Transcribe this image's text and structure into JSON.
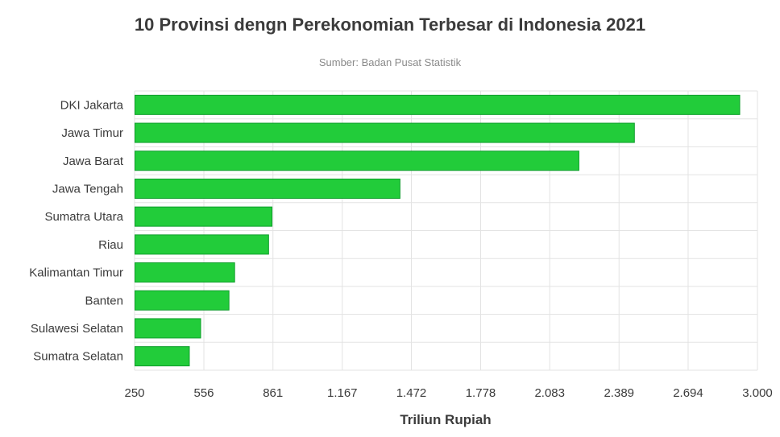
{
  "chart_data": {
    "type": "bar",
    "orientation": "horizontal",
    "title": "10 Provinsi dengn Perekonomian Terbesar di Indonesia 2021",
    "subtitle": "Sumber: Badan Pusat Statistik",
    "xlabel": "Triliun Rupiah",
    "ylabel": "",
    "xlim": [
      250,
      3000
    ],
    "x_ticks": [
      250,
      556,
      861,
      1167,
      1472,
      1778,
      2083,
      2389,
      2694,
      3000
    ],
    "x_tick_labels": [
      "250",
      "556",
      "861",
      "1.167",
      "1.472",
      "1.778",
      "2.083",
      "2.389",
      "2.694",
      "3.000"
    ],
    "grid": true,
    "legend": "none",
    "bar_color": "#22cc3a",
    "bar_border_color": "#0e9e2b",
    "categories": [
      "DKI Jakarta",
      "Jawa Timur",
      "Jawa Barat",
      "Jawa Tengah",
      "Sumatra Utara ",
      "Riau",
      "Kalimantan Timur",
      "Banten",
      "Sulawesi Selatan",
      "Sumatra Selatan"
    ],
    "values": [
      2920,
      2455,
      2210,
      1420,
      855,
      840,
      690,
      665,
      540,
      490
    ]
  }
}
